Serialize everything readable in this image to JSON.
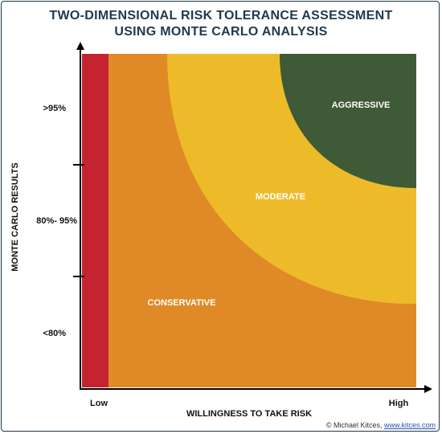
{
  "title": {
    "line1": "TWO-DIMENSIONAL RISK TOLERANCE ASSESSMENT",
    "line2": "USING MONTE CARLO ANALYSIS"
  },
  "axes": {
    "x_label": "WILLINGNESS TO TAKE RISK",
    "x_ticks": [
      "Low",
      "High"
    ],
    "y_label": "MONTE CARLO RESULTS",
    "y_ticks": [
      ">95%",
      "80%- 95%",
      "<80%"
    ]
  },
  "regions": {
    "aggressive": "AGGRESSIVE",
    "moderate": "MODERATE",
    "conservative": "CONSERVATIVE"
  },
  "colors": {
    "red": "#c4242f",
    "orange": "#e08a27",
    "yellow": "#edbb2a",
    "green": "#3e5a36",
    "title": "#1f3a4d"
  },
  "credit": {
    "prefix": "© Michael Kitces,",
    "link": "www.kitces.com"
  }
}
